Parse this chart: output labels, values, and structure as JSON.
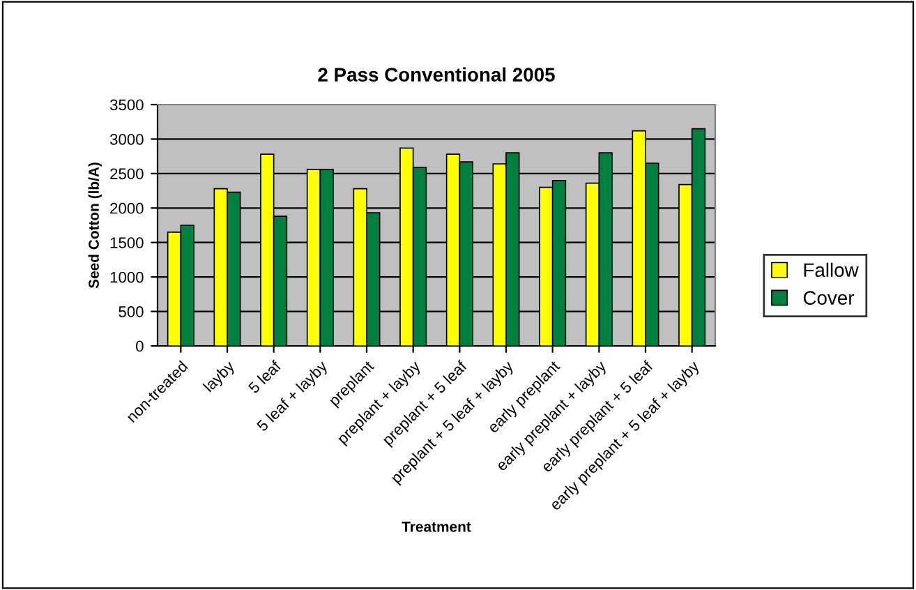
{
  "chart_data": {
    "type": "bar",
    "title": "2 Pass Conventional 2005",
    "xlabel": "Treatment",
    "ylabel": "Seed Cotton (lb/A)",
    "categories": [
      "non-treated",
      "layby",
      "5 leaf",
      "5 leaf + layby",
      "preplant",
      "preplant + layby",
      "preplant + 5 leaf",
      "preplant + 5 leaf + layby",
      "early preplant",
      "early preplant + layby",
      "early preplant + 5 leaf",
      "early preplant + 5 leaf + layby"
    ],
    "series": [
      {
        "name": "Fallow",
        "color": "#ffff00",
        "values": [
          1650,
          2280,
          2780,
          2560,
          2280,
          2870,
          2780,
          2640,
          2300,
          2360,
          3120,
          2340
        ]
      },
      {
        "name": "Cover",
        "color": "#008040",
        "values": [
          1750,
          2230,
          1880,
          2560,
          1930,
          2590,
          2670,
          2800,
          2400,
          2800,
          2650,
          3150
        ]
      }
    ],
    "ylim": [
      0,
      3500
    ],
    "yticks": [
      0,
      500,
      1000,
      1500,
      2000,
      2500,
      3000,
      3500
    ],
    "grid": "y",
    "legend": "right"
  }
}
